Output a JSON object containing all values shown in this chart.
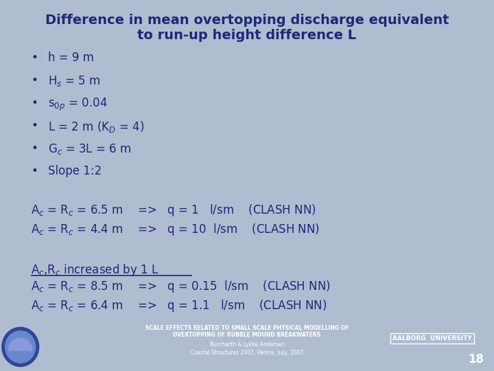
{
  "title_line1": "Difference in mean overtopping discharge equivalent",
  "title_line2": "to run-up height difference L",
  "bg_color": "#b0bcd0",
  "footer_bg_color": "#2244bb",
  "title_color": "#1a2a7a",
  "text_color": "#1a2a7a",
  "footer_text_color": "#ffffff",
  "bullet_items": [
    "h = 9 m",
    "H$_s$ = 5 m",
    "s$_{0p}$ = 0.04",
    "L = 2 m (K$_D$ = 4)",
    "G$_c$ = 3L = 6 m",
    "Slope 1:2"
  ],
  "footer_line1": "SCALE EFFECTS RELATED TO SMALL SCALE PHYSICAL MODELLING OF",
  "footer_line2": "OVERTOPPING OF RUBBLE MOUND BREAKWATERS",
  "footer_line3": "Burcharth & Lykke Andersen",
  "footer_line4": "Coastal Structures 2007, Venice, July, 2007",
  "footer_right": "AALBORG  UNIVERSITY",
  "page_number": "18"
}
